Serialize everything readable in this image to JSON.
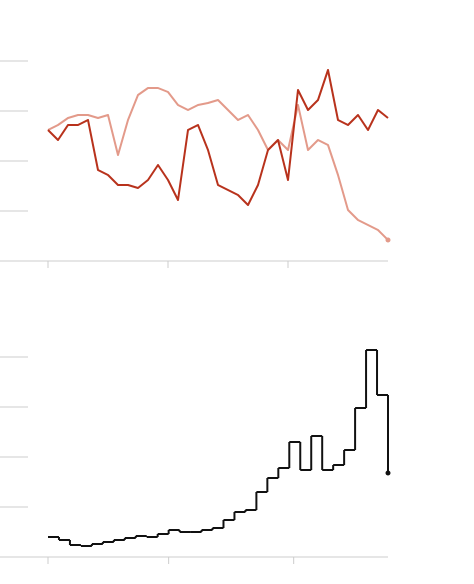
{
  "chart_data": [
    {
      "type": "line",
      "x": [
        0,
        10,
        20,
        30,
        40,
        50,
        60,
        70,
        80,
        90,
        100,
        110,
        120,
        130,
        140,
        150,
        160,
        170,
        180,
        190,
        200,
        210,
        220,
        230,
        240,
        250,
        260,
        270,
        280,
        290,
        300,
        310,
        320,
        330,
        340
      ],
      "xlim": [
        0,
        340
      ],
      "xticks": [
        0,
        120,
        240
      ],
      "ylim": [
        0,
        100
      ],
      "yticks": [
        0,
        25,
        50,
        75,
        100
      ],
      "series": [
        {
          "color": "#e39a8a",
          "values": [
            65.5,
            68,
            71.5,
            73,
            73,
            71.5,
            73,
            53,
            70.5,
            83,
            86.5,
            86.5,
            84.5,
            78,
            75.5,
            78,
            79,
            80.5,
            75.5,
            70.5,
            73,
            65.5,
            55.5,
            60.5,
            55.5,
            78,
            55.5,
            60.5,
            58,
            43,
            25.5,
            20.5,
            18,
            15.5,
            10.5
          ]
        },
        {
          "color": "#b8321c",
          "values": [
            65.5,
            60.5,
            68,
            68,
            70.5,
            45.5,
            43,
            38,
            38,
            36.5,
            40.5,
            48,
            40.5,
            30.5,
            65.5,
            68,
            55.5,
            38,
            35.5,
            33,
            28,
            38,
            55.5,
            60.5,
            40.5,
            85.5,
            75.5,
            80.5,
            95.5,
            70.5,
            68,
            73,
            65.5,
            75.5,
            71.5
          ]
        }
      ]
    },
    {
      "type": "step",
      "x": [
        0,
        1,
        2,
        3,
        4,
        5,
        6,
        7,
        8,
        9,
        10,
        11,
        12,
        13,
        14,
        15,
        16,
        17,
        18,
        19,
        20,
        21,
        22,
        23,
        24,
        25,
        26,
        27,
        28,
        29,
        30,
        31
      ],
      "xlim": [
        0,
        31
      ],
      "xticks": [
        0,
        11,
        22.4
      ],
      "ylim": [
        0,
        100
      ],
      "yticks": [
        0,
        20,
        40,
        60,
        80
      ],
      "color": "#111111",
      "values": [
        8,
        6.8,
        4.8,
        4.4,
        5.2,
        6,
        6.8,
        7.6,
        8.4,
        8,
        9.2,
        10.8,
        10,
        10,
        10.8,
        11.6,
        14.8,
        18,
        18.8,
        26,
        31.6,
        35.6,
        46,
        34.8,
        48.4,
        34.8,
        36.8,
        42.8,
        59.6,
        82.8,
        64.8,
        33.6
      ]
    }
  ]
}
